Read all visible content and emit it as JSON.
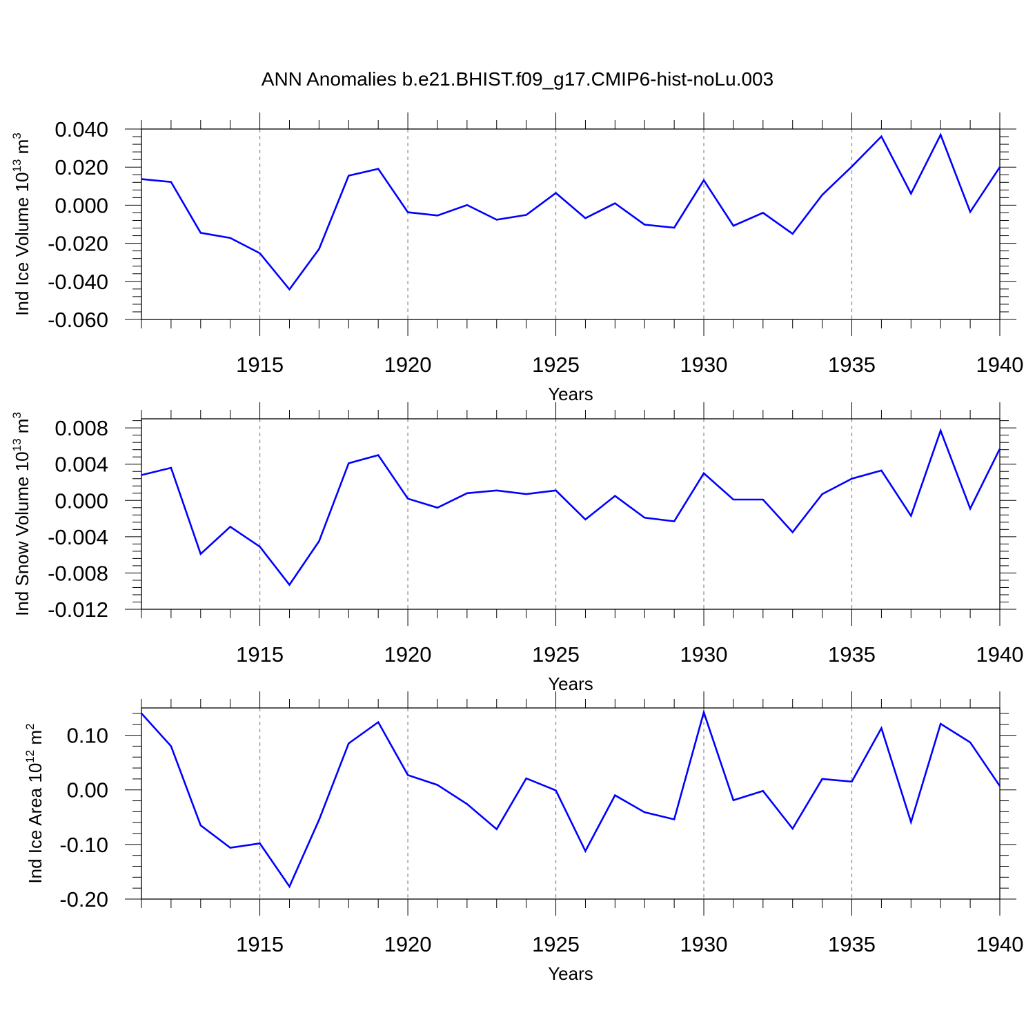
{
  "title": "ANN Anomalies b.e21.BHIST.f09_g17.CMIP6-hist-noLu.003",
  "line_color": "#0000ff",
  "chart_data": [
    {
      "type": "line",
      "ylabel_main": "Ind Ice Volume 10",
      "ylabel_exp": "13",
      "ylabel_unit": "m",
      "ylabel_unit_exp": "3",
      "xlabel": "Years",
      "xlim": [
        1911,
        1940
      ],
      "ylim": [
        -0.06,
        0.04
      ],
      "yticks": [
        0.04,
        0.02,
        0.0,
        -0.02,
        -0.04,
        -0.06
      ],
      "ytick_labels": [
        "0.040",
        "0.020",
        "0.000",
        "-0.020",
        "-0.040",
        "-0.060"
      ],
      "xticks": [
        1915,
        1920,
        1925,
        1930,
        1935,
        1940
      ],
      "xtick_labels": [
        "1915",
        "1920",
        "1925",
        "1930",
        "1935",
        "1940"
      ],
      "grid": "dashed vertical at major x ticks",
      "series": [
        {
          "name": "Ind Ice Volume",
          "x": [
            1911,
            1912,
            1913,
            1914,
            1915,
            1916,
            1917,
            1918,
            1919,
            1920,
            1921,
            1922,
            1923,
            1924,
            1925,
            1926,
            1927,
            1928,
            1929,
            1930,
            1931,
            1932,
            1933,
            1934,
            1935,
            1936,
            1937,
            1938,
            1939,
            1940
          ],
          "values": [
            0.0137,
            0.0122,
            -0.0145,
            -0.0172,
            -0.0252,
            -0.0442,
            -0.023,
            0.0155,
            0.0191,
            -0.0037,
            -0.0054,
            0.0001,
            -0.0076,
            -0.0051,
            0.0064,
            -0.0068,
            0.001,
            -0.0102,
            -0.0118,
            0.0131,
            -0.0108,
            -0.004,
            -0.015,
            0.0054,
            0.0203,
            0.0361,
            0.0061,
            0.037,
            -0.0035,
            0.02
          ]
        }
      ]
    },
    {
      "type": "line",
      "ylabel_main": "Ind Snow Volume 10",
      "ylabel_exp": "13",
      "ylabel_unit": "m",
      "ylabel_unit_exp": "3",
      "xlabel": "Years",
      "xlim": [
        1911,
        1940
      ],
      "ylim": [
        -0.012,
        0.009
      ],
      "yticks": [
        0.008,
        0.004,
        0.0,
        -0.004,
        -0.008,
        -0.012
      ],
      "ytick_labels": [
        "0.008",
        "0.004",
        "0.000",
        "-0.004",
        "-0.008",
        "-0.012"
      ],
      "xticks": [
        1915,
        1920,
        1925,
        1930,
        1935,
        1940
      ],
      "xtick_labels": [
        "1915",
        "1920",
        "1925",
        "1930",
        "1935",
        "1940"
      ],
      "grid": "dashed vertical at major x ticks",
      "series": [
        {
          "name": "Ind Snow Volume",
          "x": [
            1911,
            1912,
            1913,
            1914,
            1915,
            1916,
            1917,
            1918,
            1919,
            1920,
            1921,
            1922,
            1923,
            1924,
            1925,
            1926,
            1927,
            1928,
            1929,
            1930,
            1931,
            1932,
            1933,
            1934,
            1935,
            1936,
            1937,
            1938,
            1939,
            1940
          ],
          "values": [
            0.0028,
            0.0036,
            -0.0059,
            -0.0029,
            -0.0051,
            -0.0093,
            -0.0045,
            0.0041,
            0.005,
            0.0002,
            -0.0008,
            0.0008,
            0.0011,
            0.0007,
            0.0011,
            -0.0021,
            0.0005,
            -0.0019,
            -0.0023,
            0.003,
            0.0001,
            0.0001,
            -0.0035,
            0.0007,
            0.0024,
            0.0033,
            -0.0017,
            0.0077,
            -0.0009,
            0.0057
          ]
        }
      ]
    },
    {
      "type": "line",
      "ylabel_main": "Ind Ice Area 10",
      "ylabel_exp": "12",
      "ylabel_unit": "m",
      "ylabel_unit_exp": "2",
      "xlabel": "Years",
      "xlim": [
        1911,
        1940
      ],
      "ylim": [
        -0.2,
        0.15
      ],
      "yticks": [
        0.1,
        0.0,
        -0.1,
        -0.2
      ],
      "ytick_labels": [
        "0.10",
        "0.00",
        "-0.10",
        "-0.20"
      ],
      "xticks": [
        1915,
        1920,
        1925,
        1930,
        1935,
        1940
      ],
      "xtick_labels": [
        "1915",
        "1920",
        "1925",
        "1930",
        "1935",
        "1940"
      ],
      "grid": "dashed vertical at major x ticks",
      "series": [
        {
          "name": "Ind Ice Area",
          "x": [
            1911,
            1912,
            1913,
            1914,
            1915,
            1916,
            1917,
            1918,
            1919,
            1920,
            1921,
            1922,
            1923,
            1924,
            1925,
            1926,
            1927,
            1928,
            1929,
            1930,
            1931,
            1932,
            1933,
            1934,
            1935,
            1936,
            1937,
            1938,
            1939,
            1940
          ],
          "values": [
            0.14,
            0.08,
            -0.065,
            -0.106,
            -0.098,
            -0.177,
            -0.055,
            0.085,
            0.124,
            0.027,
            0.009,
            -0.026,
            -0.072,
            0.021,
            -0.001,
            -0.112,
            -0.01,
            -0.041,
            -0.054,
            0.142,
            -0.019,
            -0.002,
            -0.071,
            0.02,
            0.015,
            0.113,
            -0.059,
            0.121,
            0.087,
            0.007
          ]
        }
      ]
    }
  ]
}
